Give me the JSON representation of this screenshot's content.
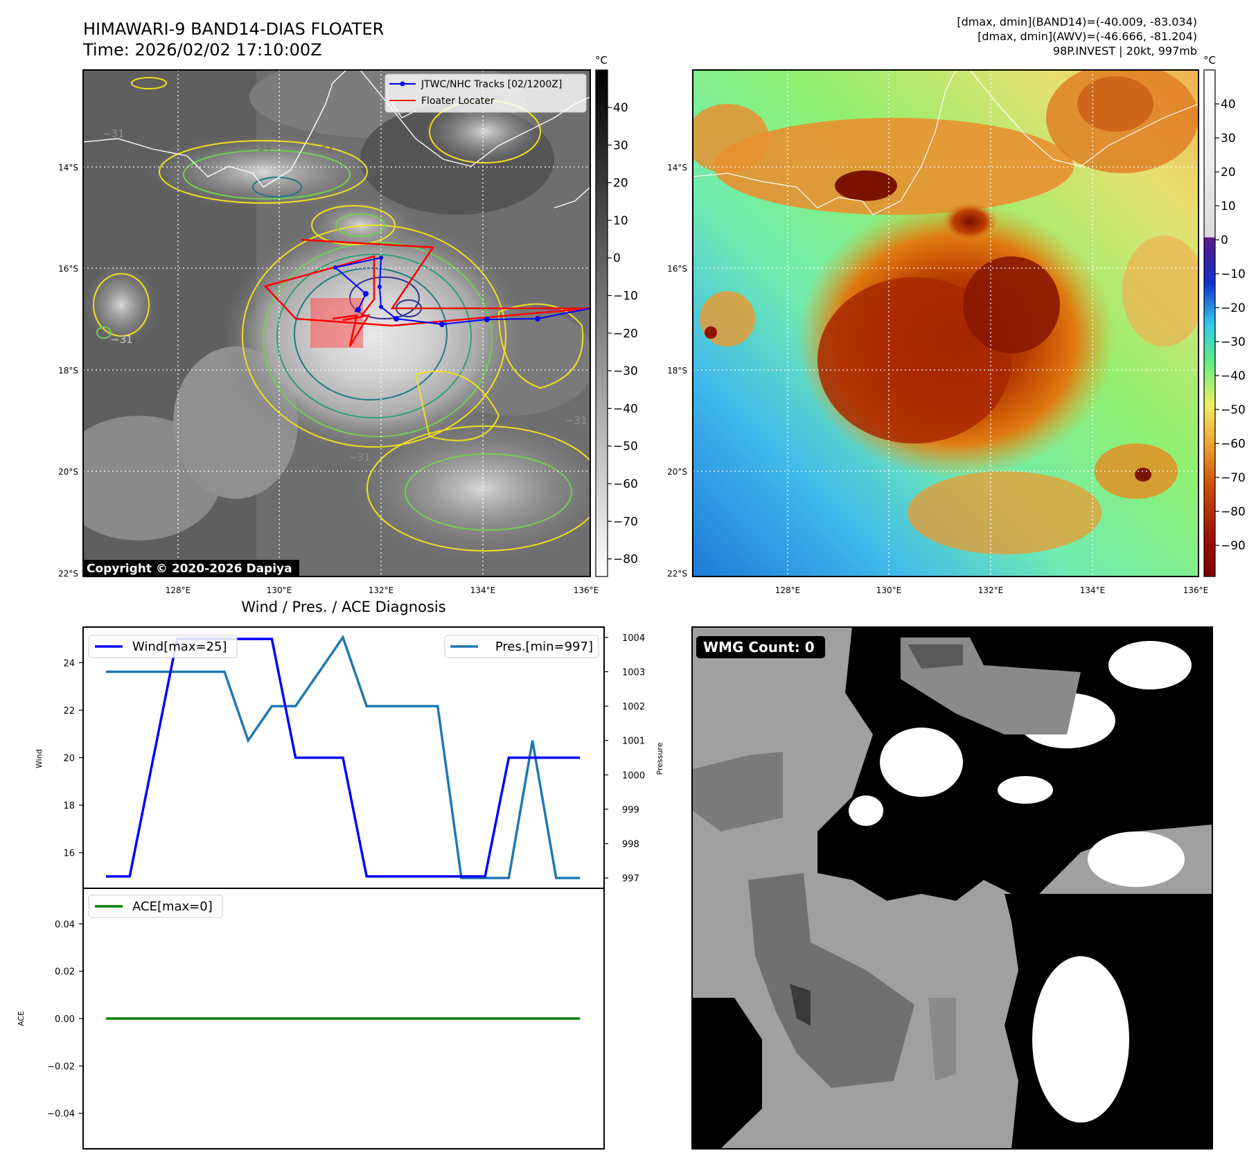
{
  "header": {
    "title": "HIMAWARI-9 BAND14-DIAS FLOATER",
    "time": "Time: 2026/02/02 17:10:00Z",
    "info_band14": "[dmax, dmin](BAND14)=(-40.009, -83.034)",
    "info_awv": "[dmax, dmin](AWV)=(-46.666, -81.204)",
    "storm": "98P.INVEST | 20kt, 997mb"
  },
  "map_axes": {
    "lon_ticks": [
      "128°E",
      "130°E",
      "132°E",
      "134°E",
      "136°E"
    ],
    "lat_ticks": [
      "14°S",
      "16°S",
      "18°S",
      "20°S",
      "22°S"
    ],
    "colorbar_unit": "°C"
  },
  "ir_panel": {
    "copyright": "Copyright © 2020-2026 Dapiya",
    "colorbar_ticks": [
      "40",
      "30",
      "20",
      "10",
      "0",
      "−10",
      "−20",
      "−30",
      "−40",
      "−50",
      "−60",
      "−70",
      "−80"
    ],
    "contour_labels": [
      "−31",
      "−54",
      "−54",
      "−31",
      "−31",
      "−31"
    ],
    "legend": [
      {
        "label": "JTWC/NHC Tracks [02/1200Z]",
        "color": "#0000ff"
      },
      {
        "label": "Floater Locater",
        "color": "#ff0000"
      }
    ]
  },
  "awv_panel": {
    "colorbar_ticks": [
      "40",
      "30",
      "20",
      "10",
      "0",
      "−10",
      "−20",
      "−30",
      "−40",
      "−50",
      "−60",
      "−70",
      "−80",
      "−90"
    ]
  },
  "wmg_panel": {
    "label": "WMG Count: 0"
  },
  "chart_data": [
    {
      "type": "line",
      "title": "Wind / Pres. / ACE Diagnosis",
      "x": [
        0,
        1,
        2,
        3,
        4,
        5,
        6,
        7,
        8,
        9,
        10,
        11,
        12,
        13,
        14,
        15,
        16,
        17,
        18,
        19,
        20
      ],
      "series": [
        {
          "name": "Wind[max=25]",
          "axis": "left",
          "color": "#0000ff",
          "values": [
            15,
            15,
            20,
            25,
            25,
            25,
            25,
            25,
            20,
            20,
            20,
            15,
            15,
            15,
            15,
            15,
            15,
            20,
            20,
            20,
            20
          ]
        },
        {
          "name": "Pres.[min=997]",
          "axis": "right",
          "color": "#1f77b4",
          "values": [
            1003,
            1003,
            1003,
            1003,
            1003,
            1003,
            1001,
            1002,
            1002,
            1003,
            1004,
            1002,
            1002,
            1002,
            1002,
            997,
            997,
            997,
            1001,
            997,
            997
          ]
        }
      ],
      "ylabel": "Wind",
      "y2label": "Pressure",
      "ylim": [
        14.5,
        25.5
      ],
      "y2lim": [
        996.7,
        1004.3
      ],
      "yticks": [
        16,
        18,
        20,
        22,
        24
      ],
      "y2ticks": [
        997,
        998,
        999,
        1000,
        1001,
        1002,
        1003,
        1004
      ],
      "legend": [
        "top-left",
        "top-right"
      ]
    },
    {
      "type": "line",
      "x": [
        0,
        1,
        2,
        3,
        4,
        5,
        6,
        7,
        8,
        9,
        10,
        11,
        12,
        13,
        14,
        15,
        16,
        17,
        18,
        19,
        20
      ],
      "series": [
        {
          "name": "ACE[max=0]",
          "color": "#008000",
          "values": [
            0,
            0,
            0,
            0,
            0,
            0,
            0,
            0,
            0,
            0,
            0,
            0,
            0,
            0,
            0,
            0,
            0,
            0,
            0,
            0,
            0
          ]
        }
      ],
      "ylabel": "ACE",
      "ylim": [
        -0.055,
        0.055
      ],
      "yticks": [
        0.04,
        0.02,
        0.0,
        -0.02,
        -0.04
      ],
      "ytick_labels": [
        "0.04",
        "0.02",
        "0.00",
        "−0.02",
        "−0.04"
      ],
      "legend": "top-left"
    }
  ]
}
